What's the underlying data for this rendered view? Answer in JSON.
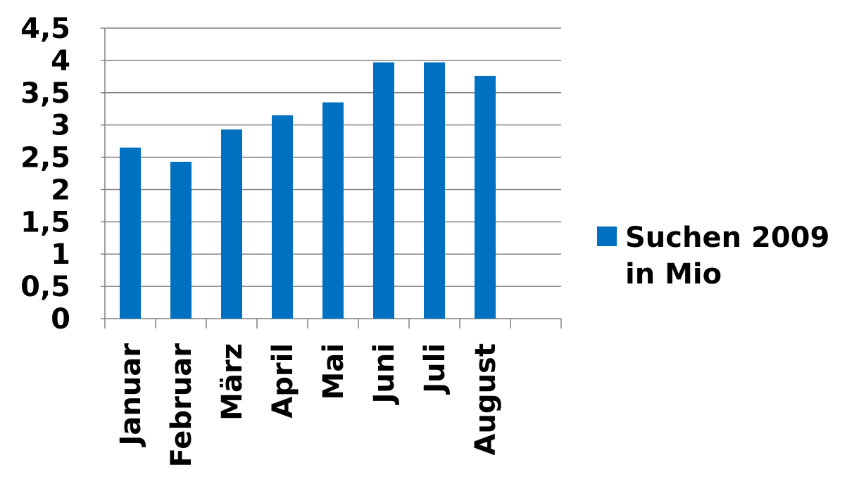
{
  "chart_data": {
    "type": "bar",
    "categories": [
      "Januar",
      "Februar",
      "März",
      "April",
      "Mai",
      "Juni",
      "Juli",
      "August",
      ""
    ],
    "series": [
      {
        "name": "Suchen 2009 in Mio",
        "color": "#0070C0",
        "values": [
          2.65,
          2.43,
          2.93,
          3.15,
          3.35,
          3.97,
          3.97,
          3.76,
          null
        ]
      }
    ],
    "ylim": [
      0,
      4.5
    ],
    "yticks": [
      "0",
      "0,5",
      "1",
      "1,5",
      "2",
      "2,5",
      "3",
      "3,5",
      "4",
      "4,5"
    ],
    "ytick_values": [
      0,
      0.5,
      1,
      1.5,
      2,
      2.5,
      3,
      3.5,
      4,
      4.5
    ],
    "grid": true,
    "legend": {
      "position": "right",
      "lines": [
        "Suchen 2009",
        "in Mio"
      ]
    },
    "title": "",
    "xlabel": "",
    "ylabel": ""
  }
}
